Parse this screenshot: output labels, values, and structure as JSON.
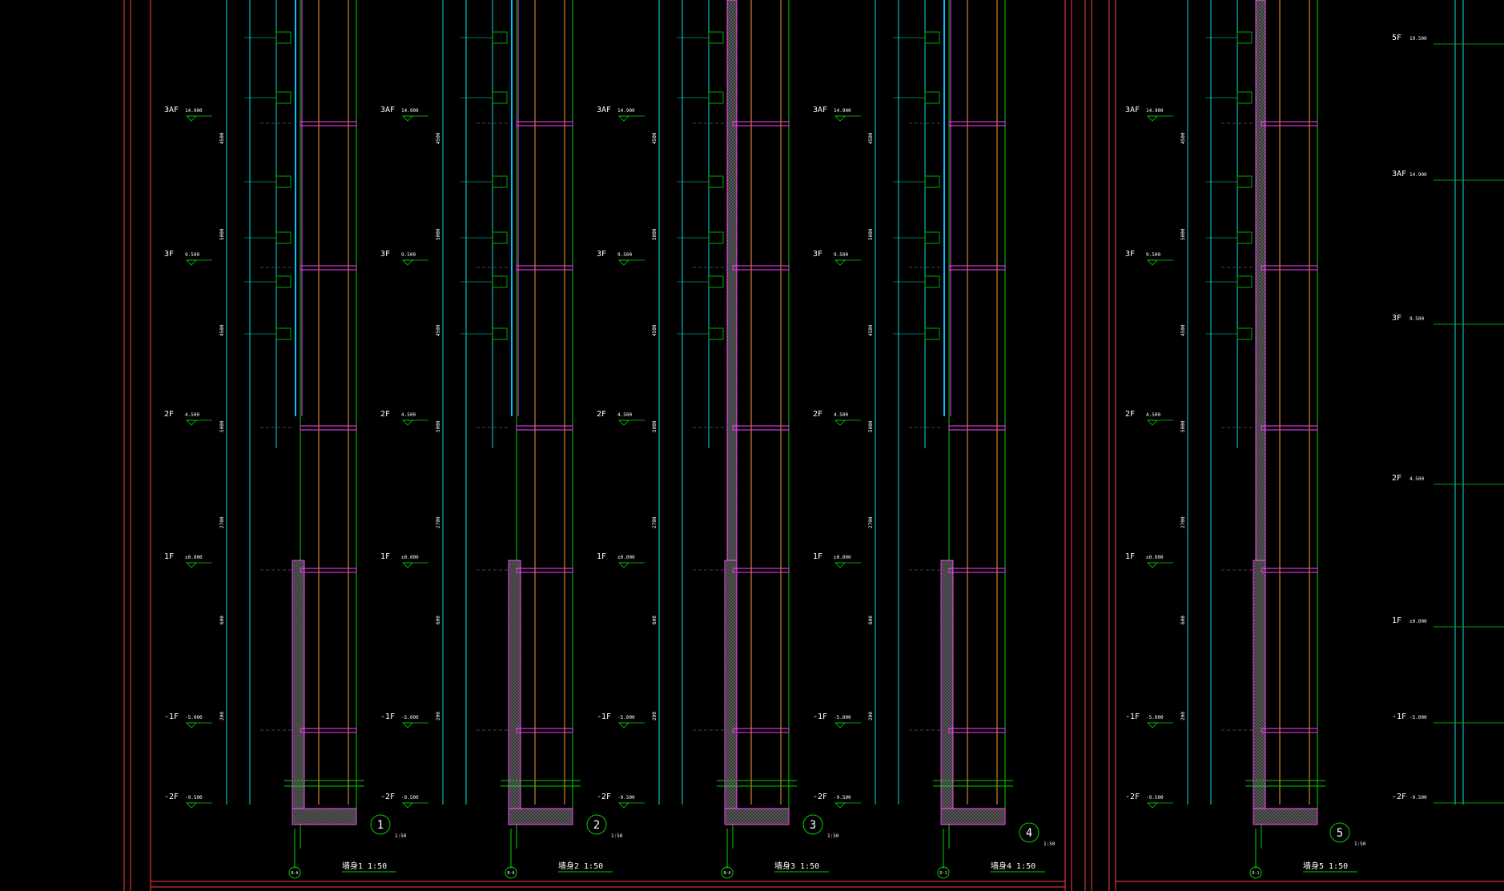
{
  "colors": {
    "background": "#000000",
    "frame": "#ff4040",
    "outline": "#00d000",
    "dimension": "#00e0e0",
    "slab": "#ff40ff",
    "interior": "#ff9933",
    "text": "#ffffff",
    "hatch": "#9a9a9a",
    "glass": "#00bfff"
  },
  "levels": [
    {
      "name": "3AF",
      "elev": "14.900"
    },
    {
      "name": "3F",
      "elev": "9.500"
    },
    {
      "name": "2F",
      "elev": "4.500"
    },
    {
      "name": "1F",
      "elev": "±0.000"
    },
    {
      "name": "-1F",
      "elev": "-5.000"
    },
    {
      "name": "-2F",
      "elev": "-9.500"
    }
  ],
  "sections": [
    {
      "number": "1",
      "title": "墙身1 1:50",
      "axis": "B-A"
    },
    {
      "number": "2",
      "title": "墙身2 1:50",
      "axis": "B-A"
    },
    {
      "number": "3",
      "title": "墙身3 1:50",
      "axis": "B-A"
    },
    {
      "number": "4",
      "title": "墙身4 1:50",
      "axis": "D-1"
    },
    {
      "number": "5",
      "title": "墙身5 1:50",
      "axis": "D-1"
    }
  ],
  "right_levels": [
    {
      "name": "5F",
      "elev": "19.500"
    },
    {
      "name": "3AF",
      "elev": "14.900"
    },
    {
      "name": "3F",
      "elev": "9.500"
    },
    {
      "name": "2F",
      "elev": "4.500"
    },
    {
      "name": "1F",
      "elev": "±0.000"
    },
    {
      "name": "-1F",
      "elev": "-5.000"
    },
    {
      "name": "-2F",
      "elev": "-9.500"
    }
  ],
  "scale_note": "1:50",
  "dimensions": [
    "4500",
    "5000",
    "4500",
    "5000",
    "2700",
    "600",
    "200"
  ]
}
